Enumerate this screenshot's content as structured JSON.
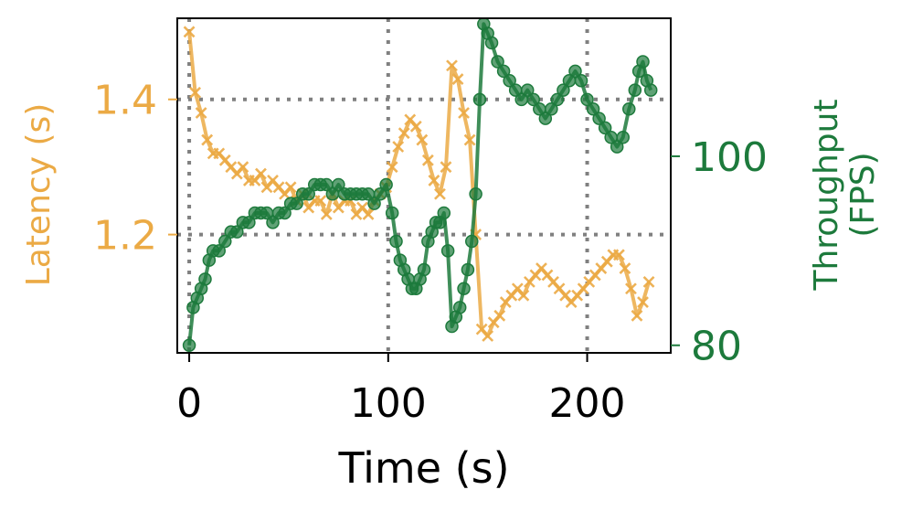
{
  "chart_data": {
    "type": "line",
    "xlabel": "Time (s)",
    "ylabel": "Latency (s)",
    "y2label_line1": "Throughput",
    "y2label_line2": "(FPS)",
    "xlim": [
      -6,
      242
    ],
    "ylim": [
      1.025,
      1.52
    ],
    "y2lim": [
      79.2,
      114.6
    ],
    "xticks": [
      0,
      100,
      200
    ],
    "xtick_labels": [
      "0",
      "100",
      "200"
    ],
    "yticks": [
      1.2,
      1.4
    ],
    "ytick_labels": [
      "1.2",
      "1.4"
    ],
    "y2ticks": [
      80,
      100
    ],
    "y2tick_labels": [
      "80",
      "100"
    ],
    "grid": "dotted, at major ticks",
    "colors": {
      "latency": "#EBAA45",
      "throughput": "#1D7A3C",
      "grid": "#808080",
      "axis": "#000000"
    },
    "series": [
      {
        "axis": "left",
        "marker": "x",
        "color": "#EBAA45",
        "x": [
          0,
          3,
          6,
          9,
          12,
          15,
          18,
          21,
          24,
          27,
          30,
          33,
          36,
          39,
          42,
          45,
          48,
          51,
          54,
          57,
          60,
          63,
          66,
          69,
          72,
          75,
          78,
          81,
          84,
          87,
          90,
          93,
          96,
          99,
          102,
          105,
          108,
          111,
          114,
          117,
          120,
          123,
          126,
          129,
          132,
          135,
          138,
          141,
          144,
          147,
          150,
          153,
          156,
          159,
          162,
          165,
          168,
          171,
          174,
          177,
          180,
          183,
          186,
          189,
          192,
          195,
          198,
          201,
          204,
          207,
          210,
          213,
          216,
          219,
          222,
          225,
          228,
          231
        ],
        "y": [
          1.5,
          1.41,
          1.38,
          1.34,
          1.32,
          1.32,
          1.31,
          1.3,
          1.29,
          1.3,
          1.28,
          1.28,
          1.29,
          1.27,
          1.28,
          1.27,
          1.26,
          1.27,
          1.25,
          1.26,
          1.24,
          1.25,
          1.25,
          1.23,
          1.26,
          1.24,
          1.25,
          1.25,
          1.23,
          1.24,
          1.23,
          1.25,
          1.26,
          1.27,
          1.3,
          1.33,
          1.35,
          1.37,
          1.36,
          1.34,
          1.31,
          1.28,
          1.26,
          1.3,
          1.45,
          1.43,
          1.38,
          1.34,
          1.2,
          1.06,
          1.05,
          1.07,
          1.08,
          1.1,
          1.11,
          1.12,
          1.11,
          1.13,
          1.14,
          1.15,
          1.14,
          1.13,
          1.12,
          1.11,
          1.1,
          1.11,
          1.12,
          1.13,
          1.14,
          1.15,
          1.16,
          1.17,
          1.17,
          1.15,
          1.12,
          1.08,
          1.1,
          1.13
        ]
      },
      {
        "axis": "right",
        "marker": "o",
        "color": "#1D7A3C",
        "x": [
          0,
          2,
          4,
          6,
          8,
          10,
          12,
          15,
          18,
          21,
          24,
          27,
          30,
          33,
          36,
          39,
          42,
          45,
          48,
          51,
          54,
          57,
          60,
          63,
          66,
          69,
          72,
          75,
          78,
          81,
          84,
          87,
          90,
          93,
          96,
          99,
          102,
          104,
          106,
          108,
          110,
          112,
          114,
          116,
          118,
          120,
          122,
          124,
          126,
          128,
          130,
          132,
          134,
          136,
          138,
          140,
          142,
          144,
          146,
          148,
          150,
          152,
          155,
          158,
          161,
          164,
          167,
          170,
          173,
          176,
          179,
          182,
          185,
          188,
          191,
          194,
          197,
          200,
          203,
          206,
          209,
          212,
          215,
          218,
          221,
          224,
          226,
          228,
          230,
          232
        ],
        "y": [
          80,
          84,
          85,
          86,
          87,
          89,
          90,
          90,
          91,
          92,
          92,
          93,
          93,
          94,
          94,
          94,
          93,
          94,
          94,
          95,
          95,
          96,
          96,
          97,
          97,
          97,
          96,
          97,
          96,
          96,
          96,
          96,
          96,
          95,
          96,
          97,
          94,
          91,
          89,
          88,
          87,
          86,
          86,
          87,
          88,
          91,
          92,
          93,
          93,
          94,
          90,
          82,
          83,
          84,
          86,
          88,
          91,
          96,
          106,
          114,
          113,
          112,
          110,
          109,
          108,
          107,
          106,
          107,
          106,
          105,
          104,
          105,
          106,
          107,
          108,
          109,
          108,
          106,
          105,
          104,
          103,
          102,
          101,
          102,
          105,
          107,
          109,
          110,
          108,
          107
        ]
      }
    ]
  }
}
